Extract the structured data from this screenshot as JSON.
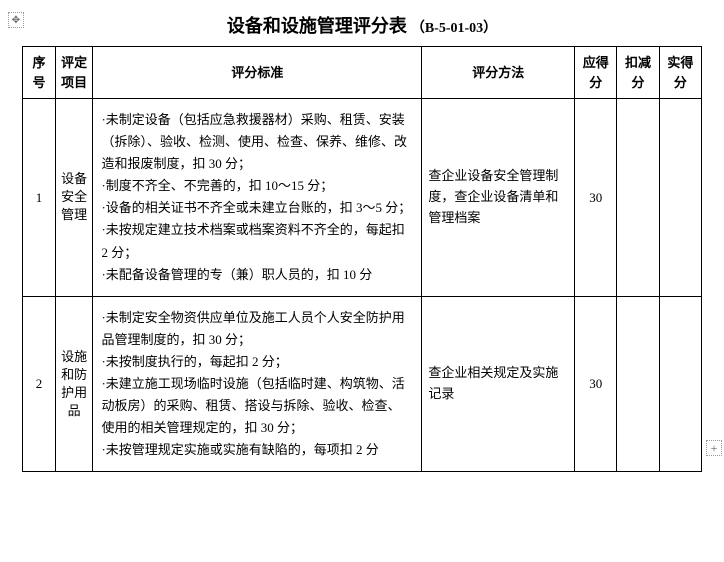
{
  "title": {
    "main": "设备和设施管理评分表",
    "sub": "（B-5-01-03）"
  },
  "headers": {
    "no": "序号",
    "item": "评定项目",
    "standard": "评分标准",
    "method": "评分方法",
    "should": "应得分",
    "deduct": "扣减分",
    "actual": "实得分"
  },
  "rows": [
    {
      "no": "1",
      "item": "设备安全管理",
      "criteria": "·未制定设备（包括应急救援器材）采购、租赁、安装（拆除）、验收、检测、使用、检查、保养、维修、改造和报废制度，扣 30 分；\n·制度不齐全、不完善的，扣 10～15 分；\n·设备的相关证书不齐全或未建立台账的，扣 3～5 分；\n·未按规定建立技术档案或档案资料不齐全的，每起扣 2 分；\n·未配备设备管理的专（兼）职人员的，扣 10 分",
      "method": "查企业设备安全管理制度，查企业设备清单和管理档案",
      "should": "30",
      "deduct": "",
      "actual": ""
    },
    {
      "no": "2",
      "item": "设施和防护用品",
      "criteria": "·未制定安全物资供应单位及施工人员个人安全防护用品管理制度的，扣 30 分；\n·未按制度执行的，每起扣 2 分；\n·未建立施工现场临时设施（包括临时建、构筑物、活动板房）的采购、租赁、搭设与拆除、验收、检查、使用的相关管理规定的，扣 30 分；\n·未按管理规定实施或实施有缺陷的，每项扣 2 分",
      "method": "查企业相关规定及实施记录",
      "should": "30",
      "deduct": "",
      "actual": ""
    }
  ]
}
